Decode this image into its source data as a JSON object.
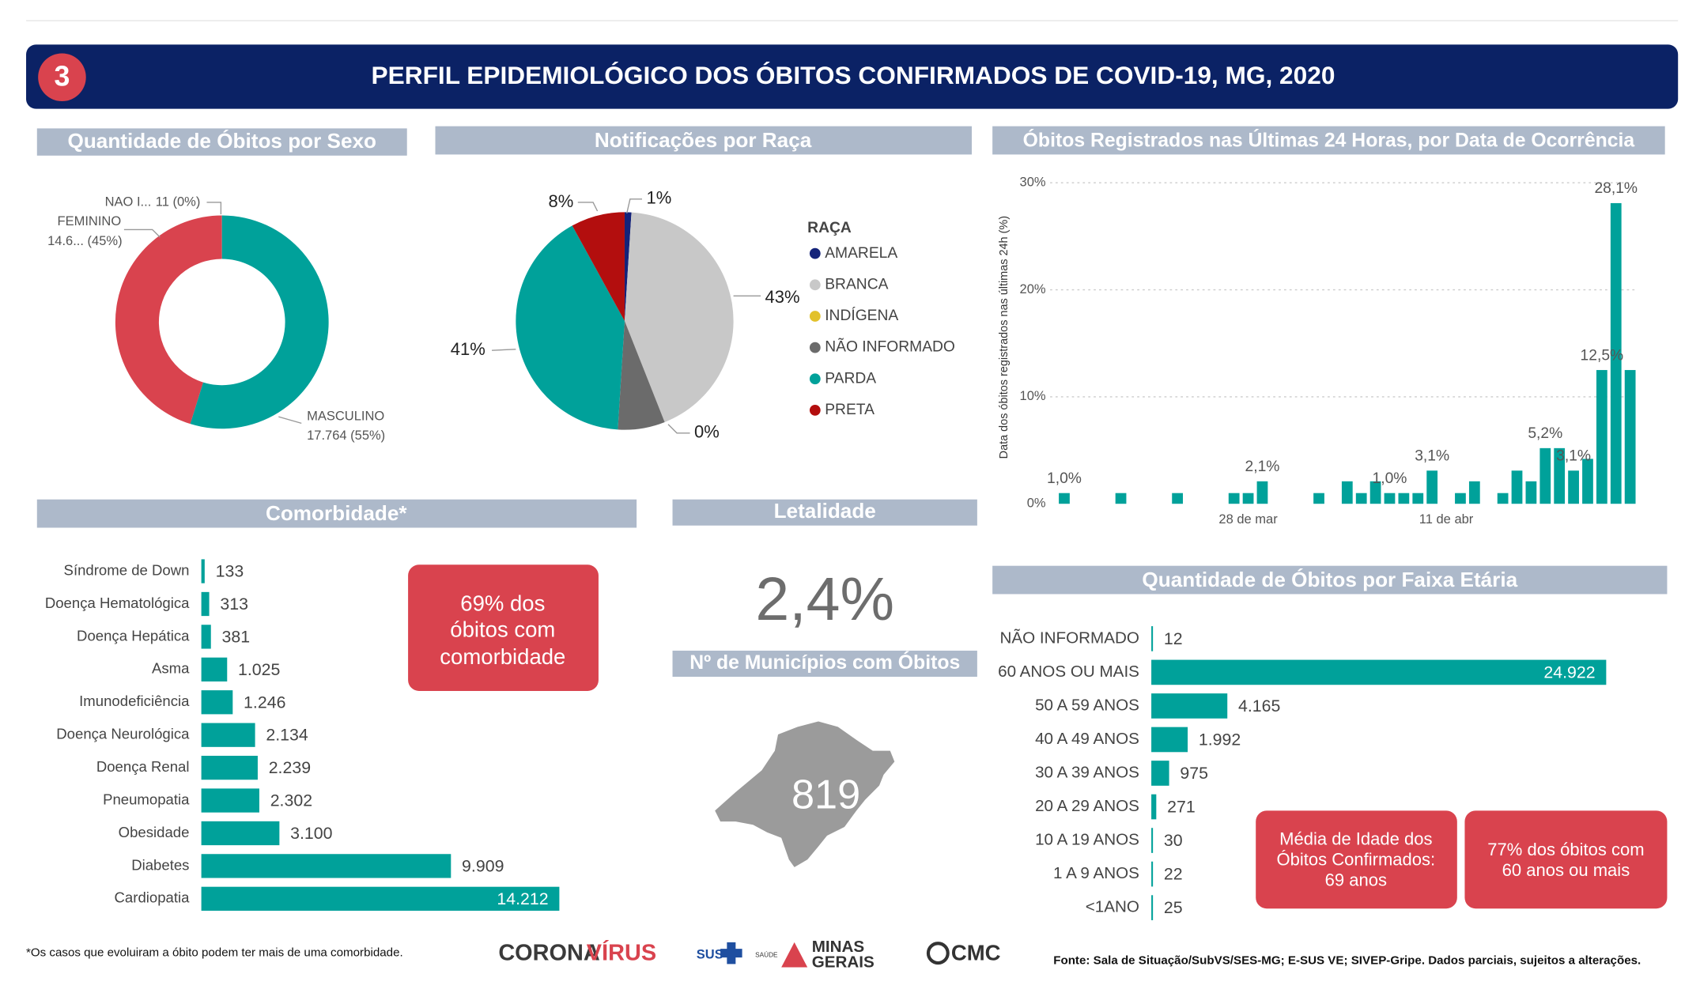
{
  "header": {
    "number": "3",
    "title": "PERFIL EPIDEMIOLÓGICO DOS ÓBITOS CONFIRMADOS DE COVID-19, MG, 2020"
  },
  "chart_data": [
    {
      "type": "donut",
      "title": "Quantidade de Óbitos por Sexo",
      "categories": [
        "NAO I...",
        "FEMININO",
        "MASCULINO"
      ],
      "values": [
        11,
        14639,
        17764
      ],
      "value_labels": [
        "11 (0%)",
        "14.6... (45%)",
        "17.764 (55%)"
      ],
      "colors": [
        "#7f7f7f",
        "#d9434e",
        "#00a19a"
      ]
    },
    {
      "type": "pie",
      "title": "Notificações por Raça",
      "legend_title": "RAÇA",
      "legend": "right",
      "categories": [
        "AMARELA",
        "BRANCA",
        "INDÍGENA",
        "NÃO INFORMADO",
        "PARDA",
        "PRETA"
      ],
      "values": [
        1,
        43,
        0,
        7,
        41,
        8
      ],
      "value_labels": [
        "1%",
        "43%",
        "0%",
        null,
        "41%",
        "8%"
      ],
      "colors": [
        "#14237a",
        "#c8c8c8",
        "#e2c12a",
        "#6b6b6b",
        "#00a19a",
        "#b30e0e"
      ]
    },
    {
      "type": "bar",
      "title": "Óbitos Registrados nas Últimas 24 Horas, por Data de Ocorrência",
      "y_label": "Data dos óbitos registrados nas últimas 24h (%)",
      "categories": [
        null,
        null,
        null,
        null,
        null,
        null,
        null,
        null,
        null,
        null,
        null,
        null,
        null,
        "28 de mar",
        null,
        null,
        null,
        null,
        null,
        null,
        null,
        null,
        null,
        null,
        null,
        null,
        null,
        "11 de abr",
        null,
        null,
        null,
        null,
        null,
        null,
        null,
        null,
        null,
        null,
        null,
        null,
        null
      ],
      "values": [
        1.0,
        null,
        null,
        null,
        1.0,
        null,
        null,
        null,
        1.0,
        null,
        null,
        null,
        1.0,
        1.0,
        2.1,
        null,
        null,
        null,
        1.0,
        null,
        2.1,
        1.0,
        2.1,
        1.0,
        1.0,
        1.0,
        3.1,
        null,
        1.0,
        2.1,
        null,
        1.0,
        3.1,
        2.1,
        5.2,
        5.2,
        3.1,
        4.2,
        12.5,
        28.1,
        12.5
      ],
      "value_labels": [
        "1,0%",
        null,
        null,
        null,
        null,
        null,
        null,
        null,
        null,
        null,
        null,
        null,
        null,
        null,
        "2,1%",
        null,
        null,
        null,
        null,
        null,
        null,
        null,
        null,
        "1,0%",
        null,
        null,
        "3,1%",
        null,
        null,
        null,
        null,
        null,
        null,
        null,
        "5,2%",
        null,
        "3,1%",
        null,
        "12,5%",
        "28,1%",
        null
      ],
      "ylim": [
        0,
        30
      ],
      "yticks": [
        {
          "value": 0,
          "label": "0%"
        },
        {
          "value": 10,
          "label": "10%"
        },
        {
          "value": 20,
          "label": "20%"
        },
        {
          "value": 30,
          "label": "30%"
        }
      ],
      "grid": true,
      "color": "#00a19a"
    },
    {
      "type": "hbar",
      "title": "Comorbidade*",
      "categories": [
        "Síndrome de Down",
        "Doença Hematológica",
        "Doença Hepática",
        "Asma",
        "Imunodeficiência",
        "Doença Neurológica",
        "Doença Renal",
        "Pneumopatia",
        "Obesidade",
        "Diabetes",
        "Cardiopatia"
      ],
      "values": [
        133,
        313,
        381,
        1025,
        1246,
        2134,
        2239,
        2302,
        3100,
        9909,
        14212
      ],
      "value_labels": [
        null,
        null,
        null,
        "1.025",
        "1.246",
        "2.134",
        "2.239",
        "2.302",
        "3.100",
        "9.909",
        "14.212"
      ],
      "color": "#00a19a"
    },
    {
      "type": "hbar",
      "title": "Quantidade de Óbitos por Faixa Etária",
      "categories": [
        "NÃO INFORMADO",
        "60 ANOS OU MAIS",
        "50 A 59 ANOS",
        "40 A 49 ANOS",
        "30 A 39 ANOS",
        "20 A 29 ANOS",
        "10 A 19 ANOS",
        "1 A 9 ANOS",
        "<1ANO"
      ],
      "values": [
        12,
        24922,
        4165,
        1992,
        975,
        271,
        30,
        22,
        25
      ],
      "value_labels": [
        null,
        "24.922",
        "4.165",
        "1.992",
        null,
        null,
        null,
        null,
        null
      ],
      "color": "#00a19a"
    }
  ],
  "kpis": {
    "comorbidade": [
      "69% dos",
      "óbitos com",
      "comorbidade"
    ],
    "letalidade": {
      "title": "Letalidade",
      "value": "2,4%"
    },
    "municipios": {
      "title": "Nº de Municípios com Óbitos",
      "value": "819"
    },
    "media_idade": [
      "Média de Idade dos",
      "Óbitos Confirmados:",
      "69 anos"
    ],
    "idosos": [
      "77% dos óbitos com",
      "60 anos ou mais"
    ]
  },
  "footer": {
    "note": "*Os casos que evoluiram a óbito podem ter mais de uma comorbidade.",
    "source": "Fonte: Sala de Situação/SubVS/SES-MG; E-SUS VE; SIVEP-Gripe. Dados parciais, sujeitos a alterações.",
    "logos": {
      "corona": "CORONA",
      "virus": "VÍRUS",
      "sus": "SUS",
      "saude": "SAÚDE",
      "minas": "MINAS",
      "gerais": "GERAIS",
      "cmc": "CMC"
    }
  }
}
